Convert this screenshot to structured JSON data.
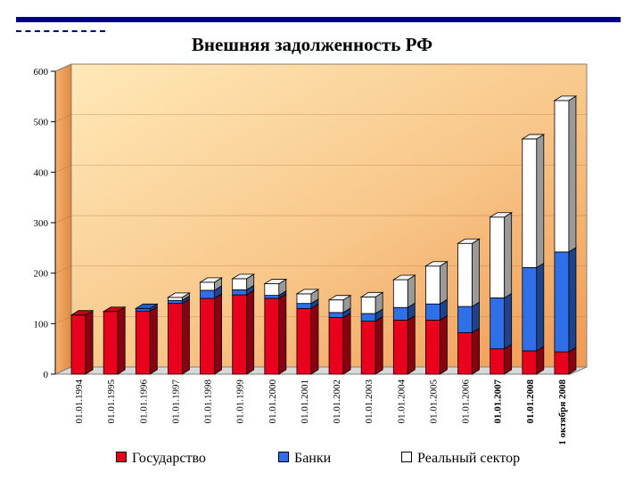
{
  "title": "Внешняя задолженность РФ",
  "chart_data": {
    "type": "bar",
    "stacked": true,
    "title": "Внешняя задолженность РФ",
    "xlabel": "",
    "ylabel": "",
    "ylim": [
      0,
      600
    ],
    "yticks": [
      0,
      100,
      200,
      300,
      400,
      500,
      600
    ],
    "categories": [
      "01.01.1994",
      "01.01.1995",
      "01.01.1996",
      "01.01.1997",
      "01.01.1998",
      "01.01.1999",
      "01.01.2000",
      "01.01.2001",
      "01.01.2002",
      "01.01.2003",
      "01.01.2004",
      "01.01.2005",
      "01.01.2006",
      "01.01.2007",
      "01.01.2008",
      "1 октября 2008"
    ],
    "bold_categories": [
      "01.01.2007",
      "01.01.2008",
      "1 октября 2008"
    ],
    "series": [
      {
        "name": "Государство",
        "color": "#e8001c",
        "values": [
          117,
          124,
          125,
          140,
          150,
          157,
          150,
          130,
          112,
          105,
          107,
          107,
          82,
          50,
          46,
          44
        ]
      },
      {
        "name": "Банки",
        "color": "#2f6fe8",
        "values": [
          0,
          0,
          5,
          6,
          16,
          10,
          6,
          10,
          10,
          15,
          25,
          32,
          52,
          101,
          165,
          198
        ]
      },
      {
        "name": "Реальный сектор",
        "color": "#ffffff",
        "values": [
          0,
          0,
          0,
          6,
          16,
          22,
          23,
          19,
          25,
          33,
          55,
          75,
          125,
          160,
          255,
          300
        ]
      }
    ],
    "legend": [
      "Государство",
      "Банки",
      "Реальный сектор"
    ],
    "legend_position": "bottom"
  }
}
